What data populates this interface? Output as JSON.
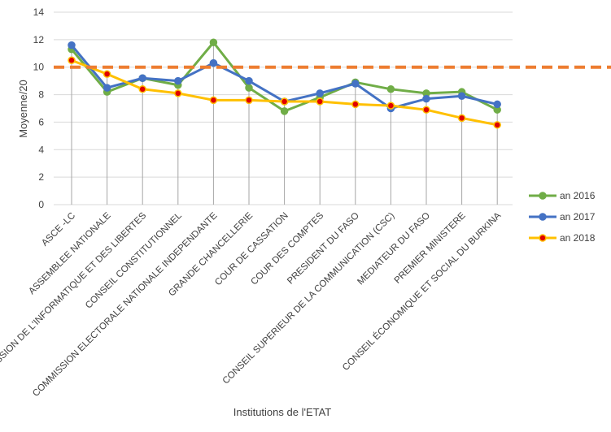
{
  "chart_data": {
    "type": "line",
    "title": "",
    "xlabel": "Institutions de l'ETAT",
    "ylabel": "Moyenne/20",
    "ylim": [
      0,
      14
    ],
    "yticks": [
      0,
      2,
      4,
      6,
      8,
      10,
      12,
      14
    ],
    "grid": true,
    "legend_position": "right",
    "reference_line": {
      "value": 10,
      "color": "#ED7D31",
      "style": "dashed"
    },
    "categories": [
      "ASCE -LC",
      "ASSEMBLEE NATIONALE",
      "COMMISSION DE L'INFORMATIQUE ET DES LIBERTES",
      "CONSEIL CONSTITUTIONNEL",
      "COMMISSION ELECTORALE NATIONALE INDEPENDANTE",
      "GRANDE CHANCELLERIE",
      "COUR DE CASSATION",
      "COUR DES COMPTES",
      "PRESIDENT DU FASO",
      "CONSEIL SUPERIEUR DE LA COMMUNICATION (CSC)",
      "MEDIATEUR DU FASO",
      "PREMIER MINISTERE",
      "CONSEIL ÉCONOMIQUE ET SOCIAL DU BURKINA"
    ],
    "series": [
      {
        "name": "an 2016",
        "color": "#70AD47",
        "marker_fill": "#70AD47",
        "values": [
          11.3,
          8.2,
          9.2,
          8.7,
          11.8,
          8.5,
          6.8,
          7.8,
          8.9,
          8.4,
          8.1,
          8.2,
          6.9
        ]
      },
      {
        "name": "an 2017",
        "color": "#4472C4",
        "marker_fill": "#4472C4",
        "values": [
          11.6,
          8.5,
          9.2,
          9.0,
          10.3,
          9.0,
          7.5,
          8.1,
          8.8,
          7.0,
          7.7,
          7.9,
          7.3
        ]
      },
      {
        "name": "an 2018",
        "color": "#FFC000",
        "marker_fill": "#E00000",
        "values": [
          10.5,
          9.5,
          8.4,
          8.1,
          7.6,
          7.6,
          7.5,
          7.5,
          7.3,
          7.2,
          6.9,
          6.3,
          5.8
        ]
      }
    ]
  }
}
